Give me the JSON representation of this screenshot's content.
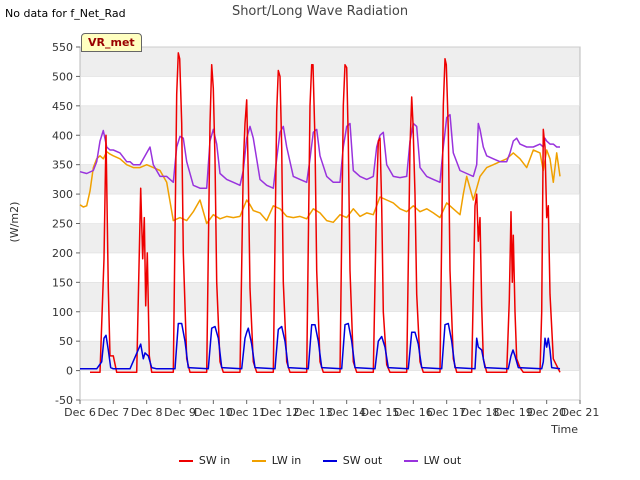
{
  "header": {
    "nodata_text": "No data for f_Net_Rad",
    "title": "Short/Long Wave Radiation",
    "badge": "VR_met"
  },
  "colors": {
    "sw_in": "#ee0000",
    "lw_in": "#f0a000",
    "sw_out": "#0000dd",
    "lw_out": "#9933dd",
    "band": "#eeeeee"
  },
  "chart_data": {
    "type": "line",
    "title": "Short/Long Wave Radiation",
    "xlabel": "Time",
    "ylabel": "(W/m2)",
    "xlim": [
      6,
      21
    ],
    "ylim": [
      -50,
      550
    ],
    "x_ticks": [
      6,
      7,
      8,
      9,
      10,
      11,
      12,
      13,
      14,
      15,
      16,
      17,
      18,
      19,
      20,
      21
    ],
    "x_tick_labels": [
      "Dec 6",
      "Dec 7",
      "Dec 8",
      "Dec 9",
      "Dec 10",
      "Dec 11",
      "Dec 12",
      "Dec 13",
      "Dec 14",
      "Dec 15",
      "Dec 16",
      "Dec 17",
      "Dec 18",
      "Dec 19",
      "Dec 20",
      "Dec 21"
    ],
    "y_ticks": [
      -50,
      0,
      50,
      100,
      150,
      200,
      250,
      300,
      350,
      400,
      450,
      500,
      550
    ],
    "grid": true,
    "legend_position": "bottom",
    "series": [
      {
        "name": "SW in",
        "x": [
          6.3,
          6.6,
          6.72,
          6.78,
          6.85,
          6.9,
          7.0,
          7.1,
          7.2,
          7.4,
          7.7,
          7.82,
          7.88,
          7.93,
          7.97,
          8.02,
          8.08,
          8.15,
          8.3,
          8.8,
          8.9,
          8.95,
          8.99,
          9.05,
          9.1,
          9.2,
          9.3,
          9.8,
          9.9,
          9.95,
          10.0,
          10.05,
          10.1,
          10.2,
          10.3,
          10.8,
          10.9,
          10.95,
          11.0,
          11.05,
          11.1,
          11.2,
          11.3,
          11.8,
          11.9,
          11.95,
          12.0,
          12.05,
          12.1,
          12.2,
          12.3,
          12.8,
          12.9,
          12.95,
          12.99,
          13.05,
          13.1,
          13.2,
          13.3,
          13.8,
          13.9,
          13.95,
          14.0,
          14.05,
          14.1,
          14.2,
          14.3,
          14.8,
          14.9,
          14.95,
          15.0,
          15.05,
          15.1,
          15.2,
          15.3,
          15.8,
          15.9,
          15.95,
          15.99,
          16.05,
          16.1,
          16.2,
          16.3,
          16.8,
          16.9,
          16.95,
          16.99,
          17.05,
          17.1,
          17.2,
          17.3,
          17.75,
          17.85,
          17.9,
          17.95,
          18.0,
          18.05,
          18.1,
          18.2,
          18.4,
          18.8,
          18.88,
          18.93,
          18.97,
          19.0,
          19.05,
          19.1,
          19.2,
          19.3,
          19.8,
          19.85,
          19.9,
          19.95,
          20.0,
          20.05,
          20.1,
          20.2,
          20.4
        ],
        "values": [
          -3,
          -3,
          190,
          400,
          140,
          25,
          25,
          -3,
          -3,
          -3,
          -3,
          310,
          190,
          260,
          110,
          200,
          25,
          -3,
          -3,
          -3,
          470,
          540,
          530,
          420,
          200,
          20,
          -3,
          -3,
          420,
          520,
          480,
          360,
          150,
          15,
          -3,
          -3,
          350,
          420,
          460,
          330,
          140,
          15,
          -3,
          -3,
          440,
          510,
          500,
          380,
          150,
          15,
          -3,
          -3,
          450,
          520,
          520,
          390,
          170,
          15,
          -3,
          -3,
          450,
          520,
          515,
          390,
          170,
          15,
          -3,
          -3,
          300,
          390,
          395,
          280,
          100,
          10,
          -3,
          -3,
          380,
          465,
          420,
          300,
          130,
          15,
          -3,
          -3,
          450,
          530,
          520,
          410,
          170,
          20,
          -3,
          -3,
          280,
          300,
          220,
          260,
          110,
          20,
          -3,
          -3,
          -3,
          120,
          270,
          150,
          230,
          100,
          20,
          5,
          -3,
          -3,
          100,
          410,
          380,
          260,
          280,
          130,
          20,
          -3
        ]
      },
      {
        "name": "LW in",
        "x": [
          6.0,
          6.1,
          6.2,
          6.3,
          6.4,
          6.5,
          6.6,
          6.7,
          6.8,
          6.9,
          7.0,
          7.2,
          7.4,
          7.6,
          7.8,
          8.0,
          8.2,
          8.4,
          8.6,
          8.8,
          9.0,
          9.2,
          9.4,
          9.6,
          9.8,
          10.0,
          10.2,
          10.4,
          10.6,
          10.8,
          11.0,
          11.1,
          11.2,
          11.4,
          11.6,
          11.8,
          12.0,
          12.2,
          12.4,
          12.6,
          12.8,
          13.0,
          13.2,
          13.4,
          13.6,
          13.8,
          14.0,
          14.2,
          14.4,
          14.6,
          14.8,
          15.0,
          15.2,
          15.4,
          15.6,
          15.8,
          16.0,
          16.2,
          16.4,
          16.6,
          16.8,
          17.0,
          17.2,
          17.4,
          17.5,
          17.6,
          17.7,
          17.8,
          17.9,
          18.0,
          18.2,
          18.4,
          18.6,
          18.8,
          19.0,
          19.2,
          19.4,
          19.6,
          19.8,
          19.9,
          20.0,
          20.1,
          20.2,
          20.3,
          20.4
        ],
        "values": [
          282,
          278,
          280,
          305,
          345,
          360,
          365,
          360,
          372,
          368,
          365,
          360,
          350,
          345,
          345,
          350,
          345,
          340,
          320,
          255,
          260,
          255,
          270,
          290,
          250,
          265,
          258,
          262,
          260,
          262,
          290,
          282,
          272,
          268,
          255,
          280,
          275,
          262,
          260,
          262,
          258,
          275,
          268,
          255,
          252,
          265,
          260,
          275,
          262,
          268,
          265,
          295,
          290,
          285,
          275,
          270,
          280,
          270,
          275,
          268,
          260,
          285,
          275,
          265,
          300,
          330,
          310,
          290,
          310,
          330,
          345,
          350,
          355,
          360,
          370,
          360,
          345,
          375,
          370,
          340,
          375,
          360,
          320,
          370,
          330
        ]
      },
      {
        "name": "SW out",
        "x": [
          6.0,
          6.5,
          6.65,
          6.72,
          6.78,
          6.85,
          6.92,
          7.0,
          7.5,
          7.82,
          7.9,
          7.95,
          8.05,
          8.15,
          8.3,
          8.85,
          8.95,
          9.05,
          9.15,
          9.25,
          9.85,
          9.95,
          10.05,
          10.15,
          10.25,
          10.85,
          10.95,
          11.0,
          11.05,
          11.15,
          11.25,
          11.85,
          11.95,
          12.05,
          12.15,
          12.25,
          12.85,
          12.95,
          13.05,
          13.15,
          13.25,
          13.85,
          13.95,
          14.05,
          14.15,
          14.25,
          14.85,
          14.95,
          15.05,
          15.15,
          15.25,
          15.85,
          15.95,
          16.05,
          16.15,
          16.25,
          16.85,
          16.95,
          17.05,
          17.15,
          17.25,
          17.85,
          17.9,
          17.95,
          18.05,
          18.15,
          18.85,
          18.93,
          18.99,
          19.05,
          19.15,
          19.85,
          19.9,
          19.95,
          20.0,
          20.05,
          20.1,
          20.15,
          20.4
        ],
        "values": [
          3,
          3,
          15,
          55,
          60,
          35,
          5,
          3,
          3,
          45,
          20,
          30,
          25,
          5,
          3,
          3,
          80,
          80,
          50,
          5,
          3,
          72,
          75,
          55,
          5,
          3,
          55,
          65,
          72,
          45,
          5,
          3,
          70,
          75,
          50,
          5,
          3,
          78,
          78,
          50,
          5,
          3,
          78,
          80,
          50,
          5,
          3,
          50,
          58,
          40,
          5,
          3,
          65,
          65,
          45,
          5,
          3,
          78,
          80,
          50,
          5,
          3,
          55,
          40,
          35,
          5,
          3,
          25,
          35,
          25,
          5,
          3,
          15,
          55,
          40,
          55,
          35,
          5,
          3
        ]
      },
      {
        "name": "LW out",
        "x": [
          6.0,
          6.2,
          6.4,
          6.5,
          6.6,
          6.7,
          6.8,
          6.9,
          7.0,
          7.2,
          7.4,
          7.5,
          7.6,
          7.8,
          8.0,
          8.1,
          8.2,
          8.4,
          8.6,
          8.8,
          8.9,
          9.0,
          9.1,
          9.2,
          9.4,
          9.6,
          9.8,
          9.9,
          10.0,
          10.1,
          10.2,
          10.4,
          10.6,
          10.8,
          10.9,
          11.0,
          11.1,
          11.2,
          11.4,
          11.6,
          11.8,
          11.9,
          12.0,
          12.1,
          12.2,
          12.4,
          12.6,
          12.8,
          12.9,
          13.0,
          13.1,
          13.2,
          13.4,
          13.6,
          13.8,
          13.9,
          14.0,
          14.1,
          14.2,
          14.4,
          14.6,
          14.8,
          14.9,
          15.0,
          15.1,
          15.2,
          15.4,
          15.6,
          15.8,
          15.9,
          16.0,
          16.1,
          16.2,
          16.4,
          16.6,
          16.8,
          16.9,
          17.0,
          17.1,
          17.2,
          17.4,
          17.6,
          17.8,
          17.9,
          17.95,
          18.0,
          18.1,
          18.2,
          18.4,
          18.6,
          18.8,
          18.9,
          19.0,
          19.1,
          19.2,
          19.4,
          19.6,
          19.8,
          19.9,
          19.95,
          20.0,
          20.1,
          20.2,
          20.3,
          20.4
        ],
        "values": [
          338,
          335,
          340,
          355,
          390,
          408,
          380,
          375,
          375,
          370,
          355,
          355,
          350,
          350,
          370,
          380,
          350,
          330,
          330,
          320,
          380,
          398,
          395,
          355,
          315,
          310,
          310,
          390,
          410,
          385,
          335,
          325,
          320,
          315,
          340,
          395,
          415,
          395,
          325,
          315,
          310,
          360,
          405,
          415,
          380,
          330,
          325,
          320,
          360,
          405,
          410,
          365,
          330,
          320,
          320,
          380,
          415,
          420,
          340,
          330,
          325,
          330,
          380,
          400,
          405,
          350,
          330,
          328,
          330,
          390,
          420,
          415,
          345,
          330,
          325,
          320,
          380,
          430,
          435,
          370,
          340,
          335,
          330,
          350,
          420,
          410,
          380,
          365,
          360,
          355,
          355,
          370,
          390,
          395,
          385,
          380,
          380,
          385,
          380,
          395,
          390,
          385,
          385,
          380,
          380
        ]
      }
    ]
  }
}
